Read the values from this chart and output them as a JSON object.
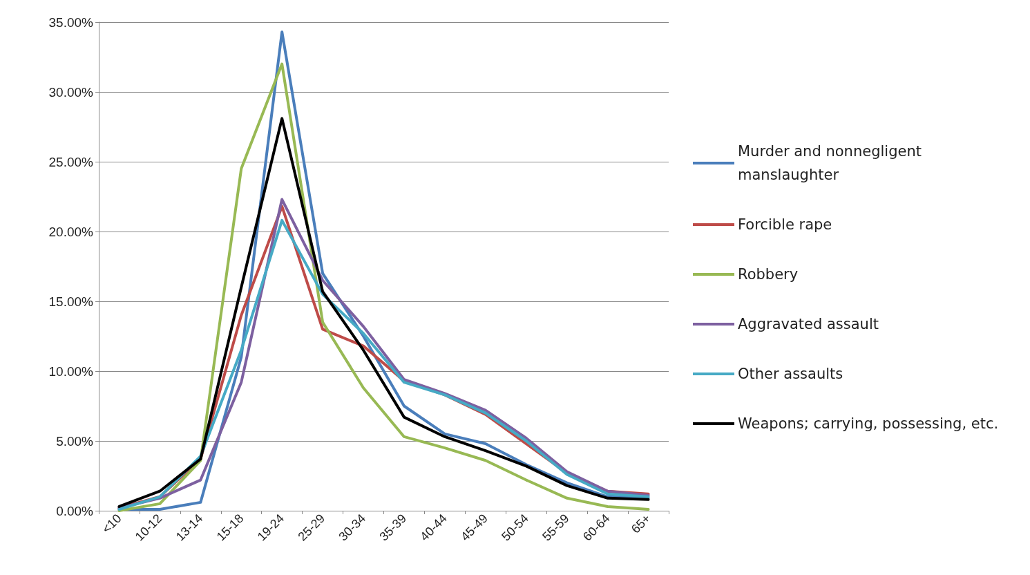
{
  "chart_data": {
    "type": "line",
    "categories": [
      "<10",
      "10-12",
      "13-14",
      "15-18",
      "19-24",
      "25-29",
      "30-34",
      "35-39",
      "40-44",
      "45-49",
      "50-54",
      "55-59",
      "60-64",
      "65+"
    ],
    "series": [
      {
        "name": "Murder and nonnegligent manslaughter",
        "color": "#4a7ebb",
        "values": [
          0.1,
          0.1,
          0.6,
          11.0,
          34.3,
          17.0,
          12.5,
          7.5,
          5.5,
          4.8,
          3.3,
          2.0,
          1.0,
          0.9
        ]
      },
      {
        "name": "Forcible rape",
        "color": "#be4b48",
        "values": [
          0.2,
          1.0,
          3.7,
          14.0,
          21.8,
          13.0,
          11.8,
          9.3,
          8.3,
          6.9,
          4.8,
          2.7,
          1.4,
          1.2
        ]
      },
      {
        "name": "Robbery",
        "color": "#98b954",
        "values": [
          0.0,
          0.5,
          3.6,
          24.5,
          32.0,
          13.5,
          8.8,
          5.3,
          4.5,
          3.6,
          2.2,
          0.9,
          0.3,
          0.1
        ]
      },
      {
        "name": "Aggravated assault",
        "color": "#7d60a0",
        "values": [
          0.2,
          0.9,
          2.2,
          9.2,
          22.3,
          16.5,
          13.2,
          9.4,
          8.4,
          7.2,
          5.2,
          2.8,
          1.4,
          1.1
        ]
      },
      {
        "name": "Other assaults",
        "color": "#46aac5",
        "values": [
          0.1,
          1.0,
          3.9,
          11.5,
          20.8,
          15.5,
          12.7,
          9.2,
          8.3,
          7.0,
          5.0,
          2.6,
          1.2,
          1.0
        ]
      },
      {
        "name": "Weapons; carrying, possessing, etc.",
        "color": "#000000",
        "values": [
          0.3,
          1.4,
          3.7,
          16.0,
          28.1,
          15.7,
          11.5,
          6.7,
          5.3,
          4.3,
          3.2,
          1.8,
          0.9,
          0.8
        ]
      }
    ],
    "ylim": [
      0,
      35
    ],
    "yticks": [
      {
        "value": 0,
        "label": "0.00%"
      },
      {
        "value": 5,
        "label": "5.00%"
      },
      {
        "value": 10,
        "label": "10.00%"
      },
      {
        "value": 15,
        "label": "15.00%"
      },
      {
        "value": 20,
        "label": "20.00%"
      },
      {
        "value": 25,
        "label": "25.00%"
      },
      {
        "value": 30,
        "label": "30.00%"
      },
      {
        "value": 35,
        "label": "35.00%"
      }
    ],
    "grid": "y",
    "legend": "right",
    "marker": "none",
    "line_style": "solid"
  }
}
